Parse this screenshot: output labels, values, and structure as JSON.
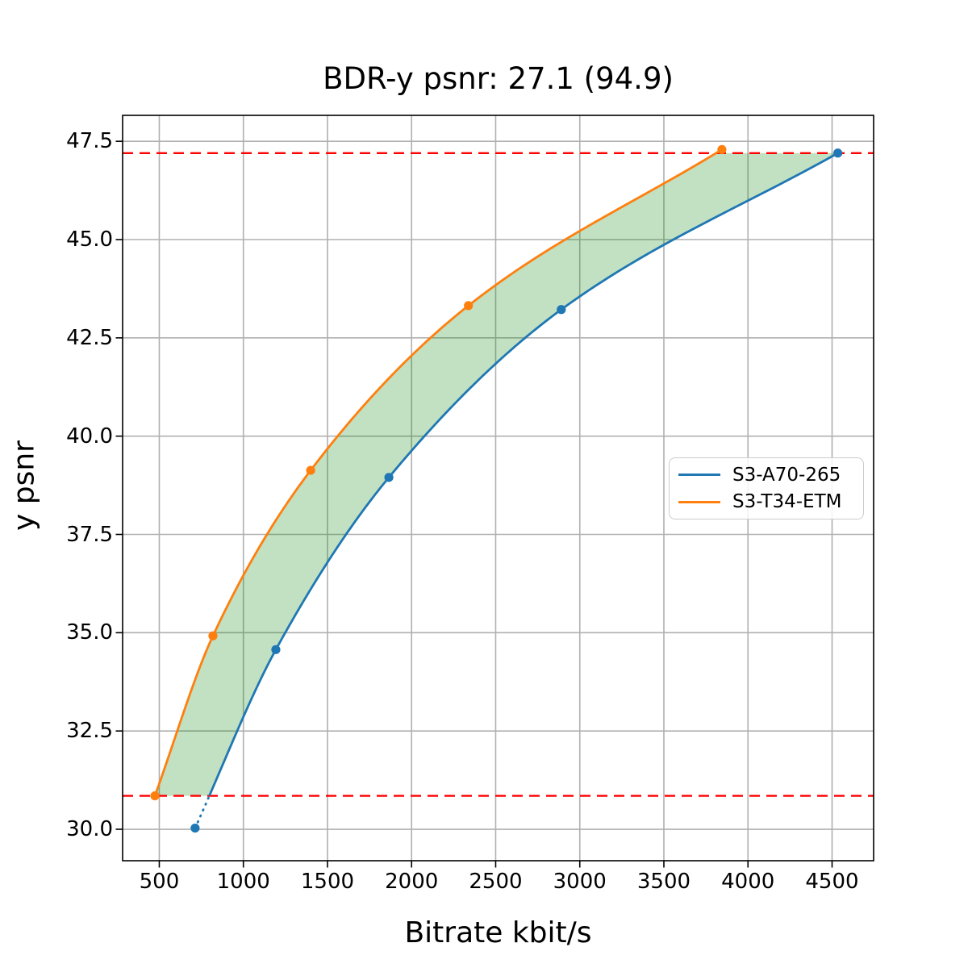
{
  "page": {
    "background": "#ffffff"
  },
  "chart_data": {
    "type": "line",
    "title": "BDR-y psnr: 27.1 (94.9)",
    "xlabel": "Bitrate kbit/s",
    "ylabel": "y psnr",
    "xlim": [
      282,
      4747
    ],
    "ylim": [
      29.2,
      48.16
    ],
    "xticks": [
      500,
      1000,
      1500,
      2000,
      2500,
      3000,
      3500,
      4000,
      4500
    ],
    "yticks": [
      30.0,
      32.5,
      35.0,
      37.5,
      40.0,
      42.5,
      45.0,
      47.5
    ],
    "grid": true,
    "grid_color": "#b0b0b0",
    "legend_position": "center right",
    "series": [
      {
        "name": "S3-A70-265",
        "color": "#1f77b4",
        "marker": "circle",
        "points": [
          [
            713,
            30.03
          ],
          [
            1193,
            34.57
          ],
          [
            1865,
            38.95
          ],
          [
            2890,
            43.22
          ],
          [
            4534,
            47.2
          ]
        ],
        "dotted_below_y": 30.85
      },
      {
        "name": "S3-T34-ETM",
        "color": "#ff7f0e",
        "marker": "circle",
        "points": [
          [
            474,
            30.85
          ],
          [
            819,
            34.92
          ],
          [
            1400,
            39.13
          ],
          [
            2338,
            43.32
          ],
          [
            3845,
            47.29
          ]
        ]
      }
    ],
    "hlines": [
      {
        "y": 47.2,
        "color": "#ff0000",
        "style": "dashed"
      },
      {
        "y": 30.85,
        "color": "#ff0000",
        "style": "dashed"
      }
    ],
    "shaded_region": {
      "between_series": [
        "S3-T34-ETM",
        "S3-A70-265"
      ],
      "y_from": 30.85,
      "y_to": 47.2,
      "fill_color": "#008000",
      "fill_alpha": 0.24
    }
  }
}
